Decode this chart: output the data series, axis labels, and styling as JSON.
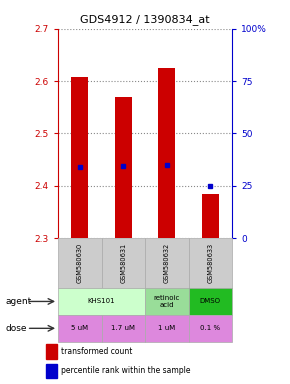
{
  "title": "GDS4912 / 1390834_at",
  "samples": [
    "GSM580630",
    "GSM580631",
    "GSM580632",
    "GSM580633"
  ],
  "bar_bottoms": [
    2.3,
    2.3,
    2.3,
    2.3
  ],
  "bar_tops": [
    2.607,
    2.57,
    2.625,
    2.385
  ],
  "percentile_values": [
    2.435,
    2.438,
    2.44,
    2.4
  ],
  "ylim_left": [
    2.3,
    2.7
  ],
  "yticks_left": [
    2.3,
    2.4,
    2.5,
    2.6,
    2.7
  ],
  "ylim_right": [
    0,
    100
  ],
  "yticks_right": [
    0,
    25,
    50,
    75,
    100
  ],
  "ytick_labels_right": [
    "0",
    "25",
    "50",
    "75",
    "100%"
  ],
  "bar_color": "#cc0000",
  "percentile_color": "#0000cc",
  "agent_info": [
    [
      0,
      2,
      "KHS101",
      "#ccffcc"
    ],
    [
      2,
      1,
      "retinoic\nacid",
      "#99dd99"
    ],
    [
      3,
      1,
      "DMSO",
      "#22bb22"
    ]
  ],
  "dose_labels": [
    "5 uM",
    "1.7 uM",
    "1 uM",
    "0.1 %"
  ],
  "dose_color": "#dd88dd",
  "sample_row_color": "#cccccc",
  "legend_bar_color": "#cc0000",
  "legend_pct_color": "#0000cc",
  "left_tick_color": "#cc0000",
  "right_tick_color": "#0000cc",
  "n": 4
}
